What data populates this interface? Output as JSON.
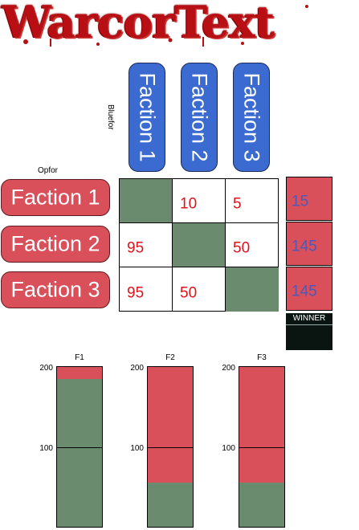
{
  "logo": {
    "text": "WarcorText"
  },
  "axes": {
    "bluefor_label": "Bluefor",
    "opfor_label": "Opfor"
  },
  "columns": [
    {
      "label": "Faction 1"
    },
    {
      "label": "Faction 2"
    },
    {
      "label": "Faction 3"
    }
  ],
  "rows": [
    {
      "label": "Faction 1",
      "cells": [
        "",
        "10",
        "5"
      ],
      "total": "15"
    },
    {
      "label": "Faction 2",
      "cells": [
        "95",
        "",
        "50"
      ],
      "total": "145"
    },
    {
      "label": "Faction 3",
      "cells": [
        "95",
        "50",
        ""
      ],
      "total": "145"
    }
  ],
  "winner_label": "WINNER",
  "colors": {
    "blue": "#3b6bd1",
    "red": "#d9505a",
    "green": "#6b8b6e",
    "score_text": "#e0141b",
    "total_text": "#4f58b8"
  },
  "chart_data": {
    "type": "bar",
    "categories": [
      "F1",
      "F2",
      "F3"
    ],
    "series": [
      {
        "values": [
          185,
          55,
          55
        ]
      },
      {
        "values": [
          15,
          145,
          145
        ]
      }
    ],
    "ylim": [
      0,
      200
    ],
    "ytick_labels": [
      "200",
      "100"
    ]
  }
}
